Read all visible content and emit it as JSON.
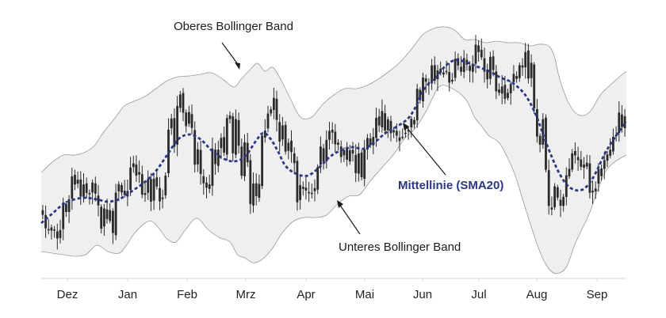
{
  "colors": {
    "band_fill": "#efefef",
    "band_edge": "#9a9a9a",
    "candle": "#2a2a2a",
    "midline": "#2b3780",
    "axis": "#d6d6d6",
    "text": "#1b1b1b"
  },
  "annotations": {
    "upper": "Oberes Bollinger Band",
    "middle": "Mittellinie (SMA20)",
    "lower": "Unteres Bollinger Band"
  },
  "chart_data": {
    "type": "candlestick-bollinger",
    "title": "",
    "xlabel": "",
    "ylabel": "",
    "months": [
      "Dez",
      "Jan",
      "Feb",
      "Mrz",
      "Apr",
      "Mai",
      "Jun",
      "Jul",
      "Aug",
      "Sep"
    ],
    "grid": false,
    "legend": "none",
    "series": [
      {
        "role": "upper",
        "label": "Oberes Bollinger Band"
      },
      {
        "role": "middle",
        "label": "Mittellinie (SMA20)"
      },
      {
        "role": "lower",
        "label": "Unteres Bollinger Band"
      }
    ],
    "mid_path": [
      [
        0,
        282
      ],
      [
        15,
        270
      ],
      [
        30,
        258
      ],
      [
        45,
        252
      ],
      [
        60,
        250
      ],
      [
        75,
        252
      ],
      [
        90,
        255
      ],
      [
        105,
        252
      ],
      [
        115,
        246
      ],
      [
        125,
        240
      ],
      [
        140,
        230
      ],
      [
        155,
        216
      ],
      [
        170,
        196
      ],
      [
        185,
        176
      ],
      [
        200,
        170
      ],
      [
        215,
        176
      ],
      [
        230,
        190
      ],
      [
        245,
        200
      ],
      [
        260,
        204
      ],
      [
        275,
        198
      ],
      [
        290,
        178
      ],
      [
        300,
        168
      ],
      [
        310,
        176
      ],
      [
        320,
        192
      ],
      [
        330,
        210
      ],
      [
        345,
        220
      ],
      [
        360,
        222
      ],
      [
        375,
        212
      ],
      [
        390,
        198
      ],
      [
        405,
        190
      ],
      [
        420,
        186
      ],
      [
        435,
        188
      ],
      [
        450,
        180
      ],
      [
        465,
        168
      ],
      [
        480,
        160
      ],
      [
        495,
        150
      ],
      [
        505,
        136
      ],
      [
        515,
        116
      ],
      [
        525,
        104
      ],
      [
        535,
        96
      ],
      [
        545,
        84
      ],
      [
        558,
        76
      ],
      [
        572,
        78
      ],
      [
        588,
        84
      ],
      [
        605,
        90
      ],
      [
        620,
        98
      ],
      [
        635,
        104
      ],
      [
        650,
        116
      ],
      [
        660,
        130
      ],
      [
        670,
        150
      ],
      [
        680,
        176
      ],
      [
        690,
        200
      ],
      [
        700,
        220
      ],
      [
        710,
        234
      ],
      [
        720,
        240
      ],
      [
        730,
        240
      ],
      [
        740,
        232
      ],
      [
        750,
        216
      ],
      [
        760,
        196
      ],
      [
        770,
        180
      ],
      [
        782,
        164
      ],
      [
        790,
        154
      ]
    ],
    "upper_path": [
      [
        0,
        218
      ],
      [
        15,
        205
      ],
      [
        30,
        196
      ],
      [
        45,
        196
      ],
      [
        60,
        192
      ],
      [
        72,
        184
      ],
      [
        82,
        170
      ],
      [
        92,
        158
      ],
      [
        102,
        146
      ],
      [
        112,
        134
      ],
      [
        125,
        128
      ],
      [
        140,
        122
      ],
      [
        155,
        112
      ],
      [
        170,
        102
      ],
      [
        185,
        97
      ],
      [
        200,
        96
      ],
      [
        215,
        94
      ],
      [
        230,
        92
      ],
      [
        245,
        100
      ],
      [
        260,
        110
      ],
      [
        270,
        100
      ],
      [
        282,
        88
      ],
      [
        292,
        80
      ],
      [
        302,
        90
      ],
      [
        312,
        85
      ],
      [
        322,
        98
      ],
      [
        335,
        122
      ],
      [
        350,
        148
      ],
      [
        365,
        148
      ],
      [
        380,
        132
      ],
      [
        395,
        120
      ],
      [
        410,
        112
      ],
      [
        425,
        112
      ],
      [
        440,
        108
      ],
      [
        455,
        100
      ],
      [
        470,
        90
      ],
      [
        485,
        78
      ],
      [
        500,
        62
      ],
      [
        515,
        44
      ],
      [
        530,
        36
      ],
      [
        545,
        34
      ],
      [
        558,
        38
      ],
      [
        572,
        50
      ],
      [
        585,
        50
      ],
      [
        600,
        54
      ],
      [
        615,
        52
      ],
      [
        630,
        54
      ],
      [
        645,
        54
      ],
      [
        660,
        58
      ],
      [
        672,
        56
      ],
      [
        685,
        58
      ],
      [
        693,
        72
      ],
      [
        700,
        100
      ],
      [
        712,
        130
      ],
      [
        725,
        145
      ],
      [
        740,
        142
      ],
      [
        755,
        120
      ],
      [
        770,
        106
      ],
      [
        782,
        96
      ],
      [
        790,
        90
      ]
    ],
    "lower_path": [
      [
        0,
        318
      ],
      [
        15,
        320
      ],
      [
        30,
        322
      ],
      [
        45,
        324
      ],
      [
        60,
        322
      ],
      [
        75,
        310
      ],
      [
        90,
        318
      ],
      [
        105,
        320
      ],
      [
        115,
        310
      ],
      [
        125,
        296
      ],
      [
        140,
        282
      ],
      [
        150,
        280
      ],
      [
        160,
        290
      ],
      [
        170,
        302
      ],
      [
        182,
        306
      ],
      [
        195,
        290
      ],
      [
        210,
        276
      ],
      [
        225,
        290
      ],
      [
        240,
        300
      ],
      [
        255,
        306
      ],
      [
        265,
        322
      ],
      [
        275,
        326
      ],
      [
        285,
        332
      ],
      [
        295,
        330
      ],
      [
        305,
        322
      ],
      [
        315,
        310
      ],
      [
        325,
        295
      ],
      [
        340,
        280
      ],
      [
        355,
        275
      ],
      [
        370,
        275
      ],
      [
        385,
        272
      ],
      [
        400,
        258
      ],
      [
        415,
        248
      ],
      [
        430,
        246
      ],
      [
        445,
        228
      ],
      [
        460,
        212
      ],
      [
        475,
        196
      ],
      [
        490,
        176
      ],
      [
        505,
        162
      ],
      [
        520,
        140
      ],
      [
        535,
        112
      ],
      [
        545,
        108
      ],
      [
        555,
        112
      ],
      [
        565,
        118
      ],
      [
        575,
        128
      ],
      [
        585,
        148
      ],
      [
        595,
        160
      ],
      [
        605,
        172
      ],
      [
        618,
        180
      ],
      [
        630,
        200
      ],
      [
        640,
        222
      ],
      [
        650,
        252
      ],
      [
        660,
        282
      ],
      [
        670,
        310
      ],
      [
        680,
        332
      ],
      [
        690,
        344
      ],
      [
        700,
        345
      ],
      [
        710,
        336
      ],
      [
        720,
        310
      ],
      [
        730,
        290
      ],
      [
        740,
        270
      ],
      [
        750,
        244
      ],
      [
        760,
        220
      ],
      [
        770,
        208
      ],
      [
        782,
        200
      ],
      [
        790,
        196
      ]
    ],
    "candle_seed": 7,
    "candle_count": 200
  }
}
